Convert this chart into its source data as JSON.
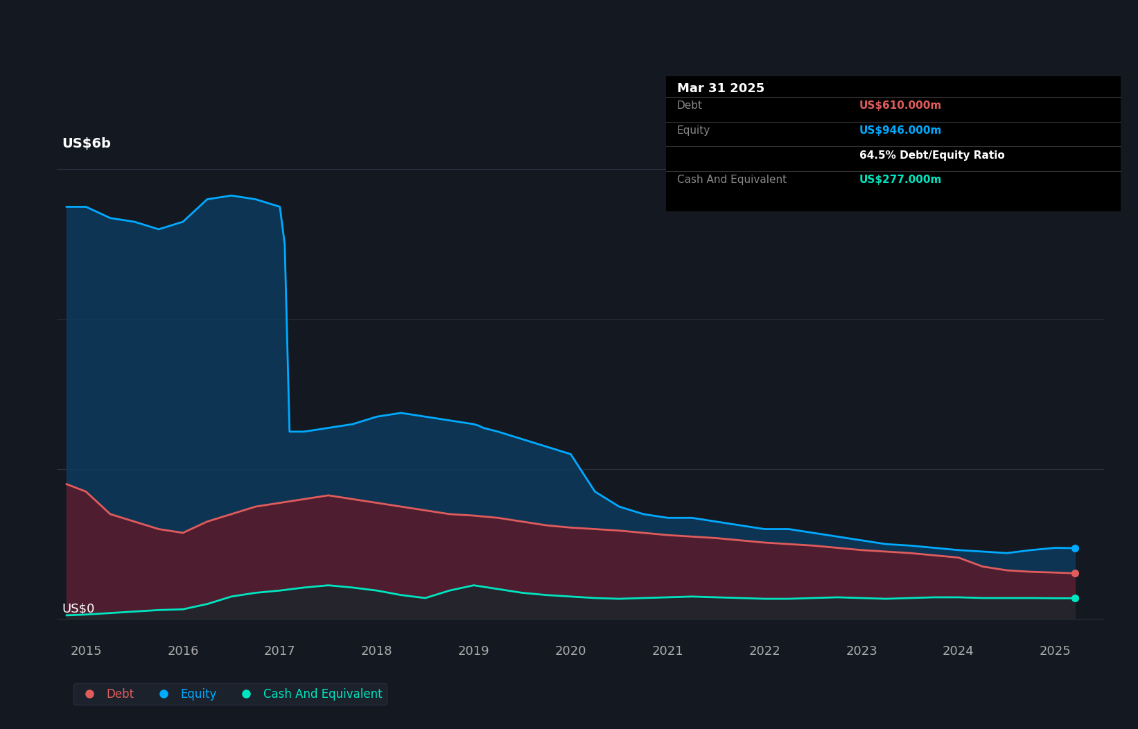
{
  "bg_color": "#141921",
  "plot_bg_color": "#141921",
  "ylabel_text": "US$6b",
  "y0_label": "US$0",
  "tooltip_date": "Mar 31 2025",
  "tooltip_debt_label": "Debt",
  "tooltip_debt_value": "US$610.000m",
  "tooltip_equity_label": "Equity",
  "tooltip_equity_value": "US$946.000m",
  "tooltip_ratio": "64.5% Debt/Equity Ratio",
  "tooltip_cash_label": "Cash And Equivalent",
  "tooltip_cash_value": "US$277.000m",
  "legend_debt": "Debt",
  "legend_equity": "Equity",
  "legend_cash": "Cash And Equivalent",
  "debt_color": "#e05c5c",
  "equity_color": "#00aaff",
  "cash_color": "#00e5c0",
  "debt_fill_color": "#5a1a2a",
  "equity_fill_color": "#0d3a5c",
  "cash_fill_color": "#0a2a2a",
  "grid_color": "#2a3040",
  "x_ticks": [
    2015,
    2016,
    2017,
    2018,
    2019,
    2020,
    2021,
    2022,
    2023,
    2024,
    2025
  ],
  "xlim": [
    2014.7,
    2025.5
  ],
  "ylim": [
    -0.3,
    6.8
  ],
  "equity_data": {
    "x": [
      2014.8,
      2015.0,
      2015.25,
      2015.5,
      2015.75,
      2016.0,
      2016.25,
      2016.5,
      2016.75,
      2017.0,
      2017.05,
      2017.1,
      2017.25,
      2017.5,
      2017.75,
      2018.0,
      2018.25,
      2018.5,
      2018.75,
      2019.0,
      2019.05,
      2019.1,
      2019.25,
      2019.5,
      2019.75,
      2020.0,
      2020.25,
      2020.5,
      2020.75,
      2021.0,
      2021.25,
      2021.5,
      2021.75,
      2022.0,
      2022.25,
      2022.5,
      2022.75,
      2023.0,
      2023.25,
      2023.5,
      2023.75,
      2024.0,
      2024.25,
      2024.5,
      2024.75,
      2025.0,
      2025.2
    ],
    "y": [
      5.5,
      5.5,
      5.35,
      5.3,
      5.2,
      5.3,
      5.6,
      5.65,
      5.6,
      5.5,
      5.0,
      2.5,
      2.5,
      2.55,
      2.6,
      2.7,
      2.75,
      2.7,
      2.65,
      2.6,
      2.58,
      2.55,
      2.5,
      2.4,
      2.3,
      2.2,
      1.7,
      1.5,
      1.4,
      1.35,
      1.35,
      1.3,
      1.25,
      1.2,
      1.2,
      1.15,
      1.1,
      1.05,
      1.0,
      0.98,
      0.95,
      0.92,
      0.9,
      0.88,
      0.92,
      0.95,
      0.946
    ]
  },
  "debt_data": {
    "x": [
      2014.8,
      2015.0,
      2015.25,
      2015.5,
      2015.75,
      2016.0,
      2016.25,
      2016.5,
      2016.75,
      2017.0,
      2017.25,
      2017.5,
      2017.75,
      2018.0,
      2018.25,
      2018.5,
      2018.75,
      2019.0,
      2019.25,
      2019.5,
      2019.75,
      2020.0,
      2020.25,
      2020.5,
      2020.75,
      2021.0,
      2021.25,
      2021.5,
      2021.75,
      2022.0,
      2022.25,
      2022.5,
      2022.75,
      2023.0,
      2023.25,
      2023.5,
      2023.75,
      2024.0,
      2024.25,
      2024.5,
      2024.75,
      2025.0,
      2025.2
    ],
    "y": [
      1.8,
      1.7,
      1.4,
      1.3,
      1.2,
      1.15,
      1.3,
      1.4,
      1.5,
      1.55,
      1.6,
      1.65,
      1.6,
      1.55,
      1.5,
      1.45,
      1.4,
      1.38,
      1.35,
      1.3,
      1.25,
      1.22,
      1.2,
      1.18,
      1.15,
      1.12,
      1.1,
      1.08,
      1.05,
      1.02,
      1.0,
      0.98,
      0.95,
      0.92,
      0.9,
      0.88,
      0.85,
      0.82,
      0.7,
      0.65,
      0.63,
      0.62,
      0.61
    ]
  },
  "cash_data": {
    "x": [
      2014.8,
      2015.0,
      2015.25,
      2015.5,
      2015.75,
      2016.0,
      2016.25,
      2016.5,
      2016.75,
      2017.0,
      2017.25,
      2017.5,
      2017.75,
      2018.0,
      2018.25,
      2018.5,
      2018.75,
      2019.0,
      2019.25,
      2019.5,
      2019.75,
      2020.0,
      2020.25,
      2020.5,
      2020.75,
      2021.0,
      2021.25,
      2021.5,
      2021.75,
      2022.0,
      2022.25,
      2022.5,
      2022.75,
      2023.0,
      2023.25,
      2023.5,
      2023.75,
      2024.0,
      2024.25,
      2024.5,
      2024.75,
      2025.0,
      2025.2
    ],
    "y": [
      0.05,
      0.06,
      0.08,
      0.1,
      0.12,
      0.13,
      0.2,
      0.3,
      0.35,
      0.38,
      0.42,
      0.45,
      0.42,
      0.38,
      0.32,
      0.28,
      0.38,
      0.45,
      0.4,
      0.35,
      0.32,
      0.3,
      0.28,
      0.27,
      0.28,
      0.29,
      0.3,
      0.29,
      0.28,
      0.27,
      0.27,
      0.28,
      0.29,
      0.28,
      0.27,
      0.28,
      0.29,
      0.29,
      0.28,
      0.28,
      0.28,
      0.277,
      0.277
    ]
  }
}
